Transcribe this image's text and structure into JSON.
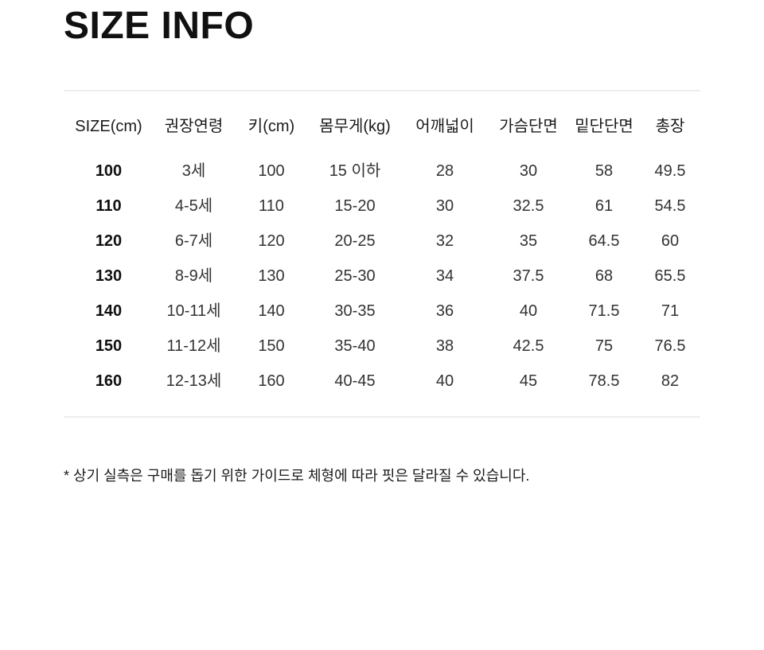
{
  "page": {
    "title": "SIZE INFO",
    "footnote": "* 상기 실측은 구매를 돕기 위한 가이드로 체형에 따라 핏은 달라질 수 있습니다."
  },
  "table": {
    "headers": [
      "SIZE(cm)",
      "권장연령",
      "키(cm)",
      "몸무게(kg)",
      "어깨넓이",
      "가슴단면",
      "밑단단면",
      "총장"
    ],
    "rows": [
      [
        "100",
        "3세",
        "100",
        "15 이하",
        "28",
        "30",
        "58",
        "49.5"
      ],
      [
        "110",
        "4-5세",
        "110",
        "15-20",
        "30",
        "32.5",
        "61",
        "54.5"
      ],
      [
        "120",
        "6-7세",
        "120",
        "20-25",
        "32",
        "35",
        "64.5",
        "60"
      ],
      [
        "130",
        "8-9세",
        "130",
        "25-30",
        "34",
        "37.5",
        "68",
        "65.5"
      ],
      [
        "140",
        "10-11세",
        "140",
        "30-35",
        "36",
        "40",
        "71.5",
        "71"
      ],
      [
        "150",
        "11-12세",
        "150",
        "35-40",
        "38",
        "42.5",
        "75",
        "76.5"
      ],
      [
        "160",
        "12-13세",
        "160",
        "40-45",
        "40",
        "45",
        "78.5",
        "82"
      ]
    ]
  },
  "colors": {
    "background": "#ffffff",
    "title": "#111111",
    "header_text": "#1a1a1a",
    "body_text": "#333333",
    "size_col_text": "#111111",
    "border": "#ededed"
  }
}
